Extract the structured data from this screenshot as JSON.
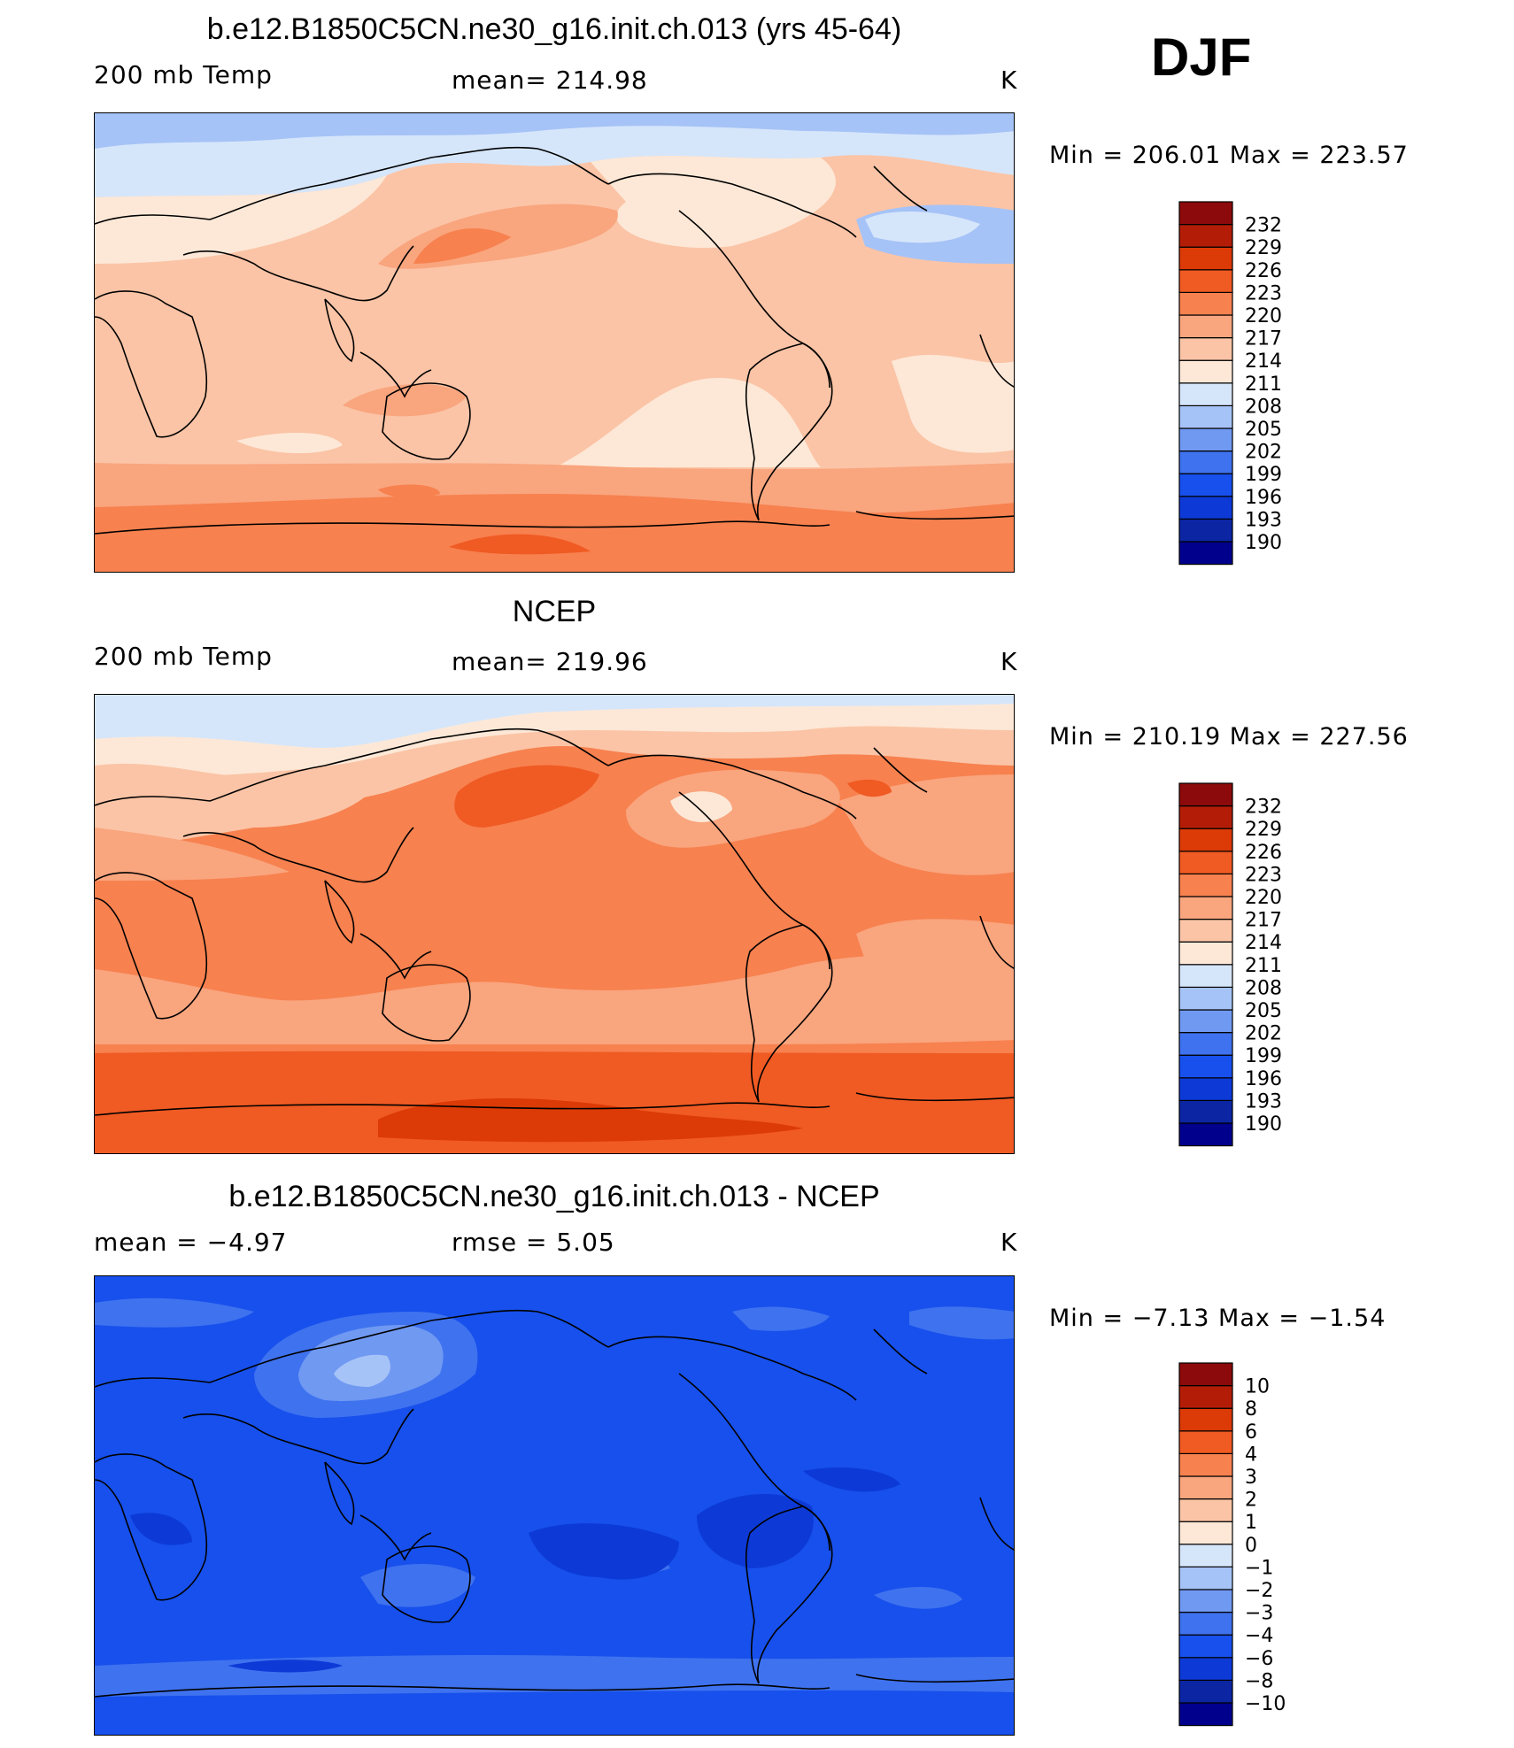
{
  "season": "DJF",
  "colors": {
    "temp_scale": [
      "#00008c",
      "#0b25a3",
      "#0d3ad7",
      "#1750ec",
      "#3f72ef",
      "#7099f2",
      "#a6c3f7",
      "#d6e6fa",
      "#fde8d7",
      "#fbc4a6",
      "#f9a57e",
      "#f7814f",
      "#f05a23",
      "#dc3a06",
      "#b31d08",
      "#8c0a0b"
    ],
    "diff_scale": [
      "#00008c",
      "#0b25a3",
      "#0d3ad7",
      "#1750ec",
      "#3f72ef",
      "#7099f2",
      "#a6c3f7",
      "#d6e6fa",
      "#fde8d7",
      "#fbc4a6",
      "#f9a57e",
      "#f7814f",
      "#f05a23",
      "#dc3a06",
      "#b31d08",
      "#8c0a0b"
    ]
  },
  "panels": [
    {
      "title": "b.e12.B1850C5CN.ne30_g16.init.ch.013 (yrs 45-64)",
      "left_label": "200 mb Temp",
      "center_label": "mean=  214.98",
      "units": "K",
      "minmax": "Min  =  206.01  Max  =  223.57",
      "colorbar_ticks": [
        "232",
        "229",
        "226",
        "223",
        "220",
        "217",
        "214",
        "211",
        "208",
        "205",
        "202",
        "199",
        "196",
        "193",
        "190"
      ]
    },
    {
      "title": "NCEP",
      "left_label": "200 mb Temp",
      "center_label": "mean=  219.96",
      "units": "K",
      "minmax": "Min  =  210.19  Max  =  227.56",
      "colorbar_ticks": [
        "232",
        "229",
        "226",
        "223",
        "220",
        "217",
        "214",
        "211",
        "208",
        "205",
        "202",
        "199",
        "196",
        "193",
        "190"
      ]
    },
    {
      "title": "b.e12.B1850C5CN.ne30_g16.init.ch.013 - NCEP",
      "left_label": "mean =    −4.97",
      "center_label": "rmse =     5.05",
      "units": "K",
      "minmax": "Min  =   −7.13  Max  =   −1.54",
      "colorbar_ticks": [
        "10",
        "8",
        "6",
        "4",
        "3",
        "2",
        "1",
        "0",
        "−1",
        "−2",
        "−3",
        "−4",
        "−6",
        "−8",
        "−10"
      ]
    }
  ]
}
